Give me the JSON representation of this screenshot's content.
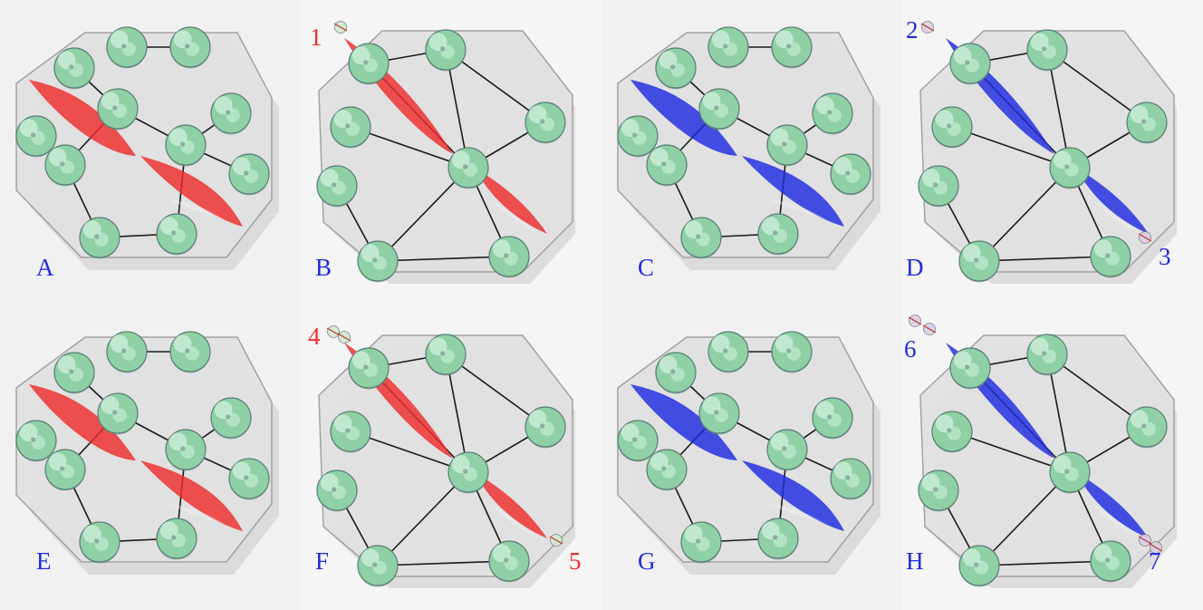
{
  "colors": {
    "red": "#ee2c2c",
    "blue": "#1f2be0",
    "sphere": "#8fd0a6",
    "edge": "#1a1a1a"
  },
  "panels": [
    {
      "letter": "A",
      "view": "side",
      "lobe": "red",
      "labels": []
    },
    {
      "letter": "B",
      "view": "top",
      "lobe": "red",
      "labels": [
        {
          "text": "1",
          "color": "red",
          "pos": "start"
        }
      ]
    },
    {
      "letter": "C",
      "view": "side",
      "lobe": "blue",
      "labels": []
    },
    {
      "letter": "D",
      "view": "top",
      "lobe": "blue",
      "labels": [
        {
          "text": "2",
          "color": "blue",
          "pos": "start"
        },
        {
          "text": "3",
          "color": "blue",
          "pos": "end"
        }
      ]
    },
    {
      "letter": "E",
      "view": "side",
      "lobe": "red",
      "labels": []
    },
    {
      "letter": "F",
      "view": "top",
      "lobe": "red",
      "labels": [
        {
          "text": "4",
          "color": "red",
          "pos": "start"
        },
        {
          "text": "5",
          "color": "red",
          "pos": "end"
        }
      ]
    },
    {
      "letter": "G",
      "view": "side",
      "lobe": "blue",
      "labels": []
    },
    {
      "letter": "H",
      "view": "top",
      "lobe": "blue",
      "labels": [
        {
          "text": "6",
          "color": "blue",
          "pos": "start"
        },
        {
          "text": "7",
          "color": "blue",
          "pos": "end"
        }
      ]
    }
  ]
}
